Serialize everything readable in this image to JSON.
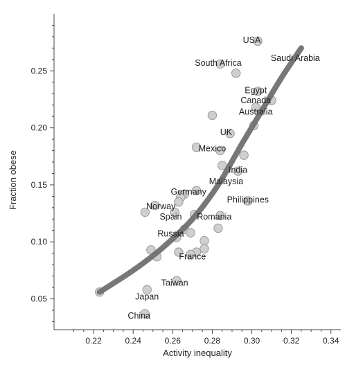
{
  "chart_data": {
    "type": "scatter",
    "title": "",
    "xlabel": "Activity inequality",
    "ylabel": "Fraction obese",
    "xlim": [
      0.2,
      0.345
    ],
    "ylim": [
      0.023,
      0.3
    ],
    "grid": false,
    "legend": "none",
    "x_ticks": [
      {
        "value": 0.22,
        "label": "0.22"
      },
      {
        "value": 0.24,
        "label": "0.24"
      },
      {
        "value": 0.26,
        "label": "0.26"
      },
      {
        "value": 0.28,
        "label": "0.28"
      },
      {
        "value": 0.3,
        "label": "0.30"
      },
      {
        "value": 0.32,
        "label": "0.32"
      },
      {
        "value": 0.34,
        "label": "0.34"
      }
    ],
    "y_ticks": [
      {
        "value": 0.05,
        "label": "0.05"
      },
      {
        "value": 0.1,
        "label": "0.10"
      },
      {
        "value": 0.15,
        "label": "0.15"
      },
      {
        "value": 0.2,
        "label": "0.20"
      },
      {
        "value": 0.25,
        "label": "0.25"
      }
    ],
    "points": [
      {
        "x": 0.303,
        "y": 0.276
      },
      {
        "x": 0.284,
        "y": 0.256
      },
      {
        "x": 0.292,
        "y": 0.248
      },
      {
        "x": 0.303,
        "y": 0.232
      },
      {
        "x": 0.31,
        "y": 0.224
      },
      {
        "x": 0.302,
        "y": 0.218
      },
      {
        "x": 0.28,
        "y": 0.211
      },
      {
        "x": 0.301,
        "y": 0.202
      },
      {
        "x": 0.289,
        "y": 0.195
      },
      {
        "x": 0.272,
        "y": 0.183
      },
      {
        "x": 0.284,
        "y": 0.18
      },
      {
        "x": 0.296,
        "y": 0.176
      },
      {
        "x": 0.285,
        "y": 0.167
      },
      {
        "x": 0.293,
        "y": 0.162
      },
      {
        "x": 0.272,
        "y": 0.145
      },
      {
        "x": 0.266,
        "y": 0.142
      },
      {
        "x": 0.264,
        "y": 0.139
      },
      {
        "x": 0.263,
        "y": 0.135
      },
      {
        "x": 0.251,
        "y": 0.132
      },
      {
        "x": 0.298,
        "y": 0.136
      },
      {
        "x": 0.246,
        "y": 0.126
      },
      {
        "x": 0.261,
        "y": 0.126
      },
      {
        "x": 0.271,
        "y": 0.124
      },
      {
        "x": 0.284,
        "y": 0.123
      },
      {
        "x": 0.283,
        "y": 0.112
      },
      {
        "x": 0.266,
        "y": 0.111
      },
      {
        "x": 0.269,
        "y": 0.108
      },
      {
        "x": 0.262,
        "y": 0.104
      },
      {
        "x": 0.276,
        "y": 0.101
      },
      {
        "x": 0.249,
        "y": 0.093
      },
      {
        "x": 0.276,
        "y": 0.094
      },
      {
        "x": 0.263,
        "y": 0.091
      },
      {
        "x": 0.272,
        "y": 0.091
      },
      {
        "x": 0.269,
        "y": 0.089
      },
      {
        "x": 0.252,
        "y": 0.087
      },
      {
        "x": 0.262,
        "y": 0.066
      },
      {
        "x": 0.247,
        "y": 0.058
      },
      {
        "x": 0.223,
        "y": 0.056
      },
      {
        "x": 0.246,
        "y": 0.037
      }
    ],
    "point_labels": [
      {
        "text": "USA",
        "x": 0.3,
        "y": 0.277
      },
      {
        "text": "Saudi Arabia",
        "x": 0.322,
        "y": 0.261
      },
      {
        "text": "South Africa",
        "x": 0.283,
        "y": 0.257
      },
      {
        "text": "Egypt",
        "x": 0.302,
        "y": 0.233
      },
      {
        "text": "Canada",
        "x": 0.302,
        "y": 0.224
      },
      {
        "text": "Australia",
        "x": 0.302,
        "y": 0.214
      },
      {
        "text": "UK",
        "x": 0.287,
        "y": 0.196
      },
      {
        "text": "Mexico",
        "x": 0.28,
        "y": 0.182
      },
      {
        "text": "India",
        "x": 0.293,
        "y": 0.163
      },
      {
        "text": "Malaysia",
        "x": 0.287,
        "y": 0.153
      },
      {
        "text": "Germany",
        "x": 0.268,
        "y": 0.144
      },
      {
        "text": "Philippines",
        "x": 0.298,
        "y": 0.137
      },
      {
        "text": "Norway",
        "x": 0.254,
        "y": 0.131
      },
      {
        "text": "Spain",
        "x": 0.259,
        "y": 0.122
      },
      {
        "text": "Romania",
        "x": 0.281,
        "y": 0.122
      },
      {
        "text": "Russia",
        "x": 0.259,
        "y": 0.107
      },
      {
        "text": "France",
        "x": 0.27,
        "y": 0.087
      },
      {
        "text": "Taiwan",
        "x": 0.261,
        "y": 0.064
      },
      {
        "text": "Japan",
        "x": 0.247,
        "y": 0.052
      },
      {
        "text": "China",
        "x": 0.243,
        "y": 0.035
      }
    ],
    "trend_line": {
      "x": [
        0.223,
        0.24,
        0.255,
        0.27,
        0.283,
        0.295,
        0.305,
        0.315,
        0.325
      ],
      "y": [
        0.056,
        0.075,
        0.095,
        0.12,
        0.15,
        0.186,
        0.215,
        0.244,
        0.27
      ]
    },
    "colors": {
      "point_fill": "#cfcfcf",
      "point_stroke": "#9a9a9a",
      "trend": "#707070",
      "axis": "#444444",
      "text": "#222222"
    }
  }
}
